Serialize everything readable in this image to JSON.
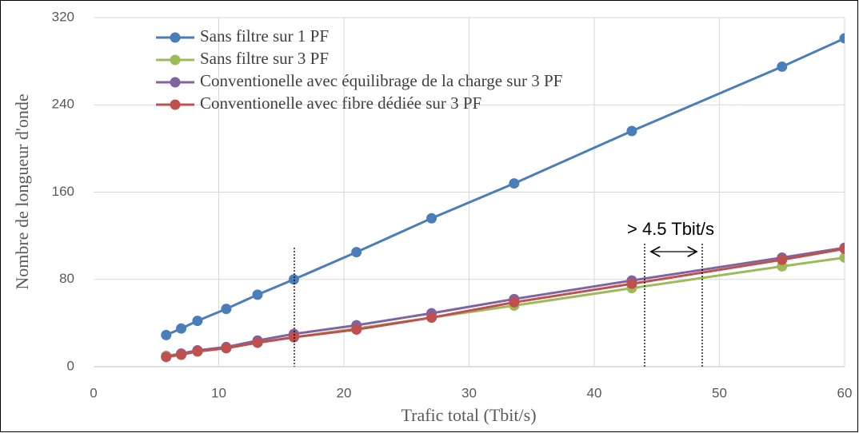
{
  "chart_data": {
    "type": "line",
    "xlabel": "Trafic total (Tbit/s)",
    "ylabel": "Nombre de longueur d'onde",
    "annotation": "> 4.5 Tbit/s",
    "xlim": [
      0,
      60
    ],
    "xticks": [
      0,
      10,
      20,
      30,
      40,
      50,
      60
    ],
    "ylim": [
      0,
      320
    ],
    "yticks": [
      0,
      80,
      160,
      240,
      320
    ],
    "grid": true,
    "legend": "upper left",
    "x": [
      5.8,
      7,
      8.3,
      10.6,
      13.1,
      16,
      21,
      27,
      33.6,
      43,
      55,
      60
    ],
    "series": [
      {
        "name": "Sans filtre sur 1 PF",
        "color": "#4a7ebb",
        "values": [
          29,
          35,
          42,
          53,
          66,
          80,
          105,
          136,
          168,
          216,
          275,
          301
        ]
      },
      {
        "name": "Sans filtre sur 3 PF",
        "color": "#9bbb59",
        "values": [
          10,
          12,
          14,
          17,
          22,
          27,
          35,
          45,
          56,
          72,
          92,
          100
        ]
      },
      {
        "name": "Conventionelle avec équilibrage de la charge sur 3 PF",
        "color": "#8064a2",
        "values": [
          9,
          12,
          15,
          18,
          24,
          30,
          38,
          49,
          62,
          79,
          100,
          109
        ]
      },
      {
        "name": "Conventionelle avec fibre dédiée sur 3 PF",
        "color": "#c0504d",
        "values": [
          9,
          11,
          14,
          17,
          22,
          27,
          34,
          45,
          59,
          76,
          98,
          108
        ]
      }
    ]
  }
}
